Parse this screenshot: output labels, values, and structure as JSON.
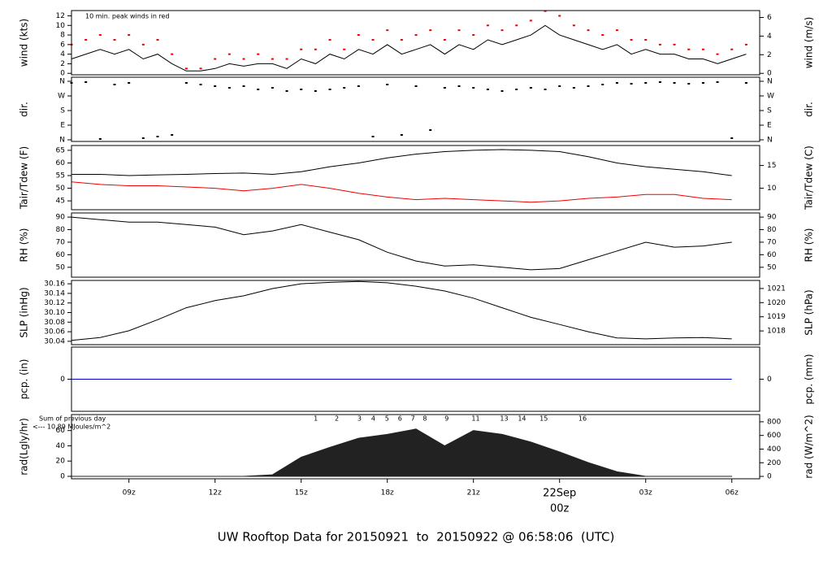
{
  "chart_data": [
    {
      "type": "line",
      "ylabel": "wind (kts)",
      "y2label": "wind (m/s)",
      "annotation": "10 min. peak winds in red",
      "annotation_color": "#ee0000",
      "xlim": [
        7,
        30.97
      ],
      "x": [
        7,
        7.5,
        8,
        8.5,
        9,
        9.5,
        10,
        10.5,
        11,
        11.5,
        12,
        12.5,
        13,
        13.5,
        14,
        14.5,
        15,
        15.5,
        16,
        16.5,
        17,
        17.5,
        18,
        18.5,
        19,
        19.5,
        20,
        20.5,
        21,
        21.5,
        22,
        22.5,
        23,
        23.5,
        24,
        24.5,
        25,
        25.5,
        26,
        26.5,
        27,
        27.5,
        28,
        28.5,
        29,
        29.5,
        30,
        30.5
      ],
      "series": [
        {
          "color": "#000000",
          "style": "line",
          "values": [
            3,
            4,
            5,
            4,
            5,
            3,
            4,
            2,
            0.5,
            0.5,
            1,
            2,
            1.5,
            2,
            2,
            1,
            3,
            2,
            4,
            3,
            5,
            4,
            6,
            4,
            5,
            6,
            4,
            6,
            5,
            7,
            6,
            7,
            8,
            10,
            8,
            7,
            6,
            5,
            6,
            4,
            5,
            4,
            4,
            3,
            3,
            2,
            3,
            4
          ]
        },
        {
          "color": "#ee0000",
          "style": "points",
          "values": [
            6,
            7,
            8,
            7,
            8,
            6,
            7,
            4,
            1,
            1,
            3,
            4,
            3,
            4,
            3,
            3,
            5,
            5,
            7,
            5,
            8,
            7,
            9,
            7,
            8,
            9,
            7,
            9,
            8,
            10,
            9,
            10,
            11,
            13,
            12,
            10,
            9,
            8,
            9,
            7,
            7,
            6,
            6,
            5,
            5,
            4,
            5,
            6
          ]
        }
      ],
      "ylim": [
        -0.3,
        13.1
      ],
      "yticks": [
        0,
        2,
        4,
        6,
        8,
        10,
        12
      ],
      "y2lim": [
        -0.154,
        6.74
      ],
      "y2ticks": [
        0,
        2,
        4,
        6
      ]
    },
    {
      "type": "scatter",
      "ylabel": "dir.",
      "y2label": "dir.",
      "xlim": [
        7,
        30.97
      ],
      "x": [
        7,
        7.5,
        8,
        8.5,
        9,
        9.5,
        10,
        10.5,
        11,
        11.5,
        12,
        12.5,
        13,
        13.5,
        14,
        14.5,
        15,
        15.5,
        16,
        16.5,
        17,
        17.5,
        18,
        18.5,
        19,
        19.5,
        20,
        20.5,
        21,
        21.5,
        22,
        22.5,
        23,
        23.5,
        24,
        24.5,
        25,
        25.5,
        26,
        26.5,
        27,
        27.5,
        28,
        28.5,
        29,
        29.5,
        30,
        30.5
      ],
      "series": [
        {
          "color": "#000000",
          "style": "points",
          "values": [
            350,
            355,
            5,
            340,
            350,
            10,
            20,
            30,
            350,
            340,
            330,
            320,
            330,
            310,
            320,
            300,
            310,
            300,
            310,
            320,
            330,
            20,
            340,
            30,
            330,
            60,
            320,
            330,
            320,
            310,
            300,
            310,
            320,
            310,
            330,
            320,
            330,
            340,
            350,
            345,
            350,
            355,
            350,
            345,
            350,
            355,
            10,
            350
          ]
        }
      ],
      "ylim": [
        -10,
        385
      ],
      "yticks": [
        {
          "value": 360,
          "label": "N"
        },
        {
          "value": 270,
          "label": "W"
        },
        {
          "value": 180,
          "label": "S"
        },
        {
          "value": 90,
          "label": "E"
        },
        {
          "value": 0,
          "label": "N"
        }
      ],
      "y2lim": [
        -10,
        385
      ],
      "y2ticks": [
        {
          "value": 360,
          "label": "N"
        },
        {
          "value": 270,
          "label": "W"
        },
        {
          "value": 180,
          "label": "S"
        },
        {
          "value": 90,
          "label": "E"
        },
        {
          "value": 0,
          "label": "N"
        }
      ]
    },
    {
      "type": "line",
      "ylabel": "Tair/Tdew (F)",
      "y2label": "Tair/Tdew (C)",
      "xlim": [
        7,
        30.97
      ],
      "x": [
        7,
        8,
        9,
        10,
        11,
        12,
        13,
        14,
        15,
        16,
        17,
        18,
        19,
        20,
        21,
        22,
        23,
        24,
        25,
        26,
        27,
        28,
        29,
        30
      ],
      "series": [
        {
          "color": "#000000",
          "style": "line",
          "values": [
            55.5,
            55.5,
            55,
            55.3,
            55.5,
            55.8,
            56,
            55.5,
            56.5,
            58.5,
            60,
            62,
            63.5,
            64.5,
            65,
            65.3,
            65,
            64.5,
            62.5,
            60,
            58.5,
            57.5,
            56.5,
            55
          ]
        },
        {
          "color": "#ee0000",
          "style": "line",
          "values": [
            52.5,
            51.5,
            51,
            51,
            50.5,
            50,
            49,
            50,
            51.5,
            50,
            48,
            46.5,
            45.5,
            46,
            45.5,
            45,
            44.5,
            45,
            46,
            46.5,
            47.5,
            47.5,
            46,
            45.5
          ]
        }
      ],
      "ylim": [
        41.5,
        66.9
      ],
      "yticks": [
        45,
        50,
        55,
        60,
        65
      ],
      "y2lim": [
        5.28,
        19.39
      ],
      "y2ticks": [
        10,
        15
      ]
    },
    {
      "type": "line",
      "ylabel": "RH (%)",
      "y2label": "RH (%)",
      "xlim": [
        7,
        30.97
      ],
      "x": [
        7,
        8,
        9,
        10,
        11,
        12,
        13,
        14,
        15,
        16,
        17,
        18,
        19,
        20,
        21,
        22,
        23,
        24,
        25,
        26,
        27,
        28,
        29,
        30
      ],
      "series": [
        {
          "color": "#000000",
          "style": "line",
          "values": [
            90,
            88,
            86,
            86,
            84,
            82,
            76,
            79,
            84,
            78,
            72,
            62,
            55,
            51,
            52,
            50,
            48,
            49,
            56,
            63,
            70,
            66,
            67,
            70
          ]
        }
      ],
      "ylim": [
        42.1,
        93.3
      ],
      "yticks": [
        50,
        60,
        70,
        80,
        90
      ],
      "y2lim": [
        42.1,
        93.3
      ],
      "y2ticks": [
        50,
        60,
        70,
        80,
        90
      ]
    },
    {
      "type": "line",
      "ylabel": "SLP (inHg)",
      "y2label": "SLP (hPa)",
      "xlim": [
        7,
        30.97
      ],
      "x": [
        7,
        8,
        9,
        10,
        11,
        12,
        13,
        14,
        15,
        16,
        17,
        18,
        19,
        20,
        21,
        22,
        23,
        24,
        25,
        26,
        27,
        28,
        29,
        30
      ],
      "series": [
        {
          "color": "#000000",
          "style": "line",
          "values": [
            30.042,
            30.048,
            30.062,
            30.085,
            30.11,
            30.125,
            30.135,
            30.15,
            30.16,
            30.163,
            30.165,
            30.162,
            30.155,
            30.145,
            30.13,
            30.11,
            30.09,
            30.075,
            30.06,
            30.047,
            30.045,
            30.047,
            30.048,
            30.045
          ]
        }
      ],
      "ylim": [
        30.033,
        30.167
      ],
      "yticks": [
        30.04,
        30.06,
        30.08,
        {
          "value": 30.1,
          "label": "30.10"
        },
        30.12,
        30.14,
        30.16
      ],
      "y2lim": [
        1017.03,
        1021.57
      ],
      "y2ticks": [
        1018,
        1019,
        1020,
        1021
      ]
    },
    {
      "type": "line",
      "ylabel": "pcp. (in)",
      "y2label": "pcp. (mm)",
      "xlim": [
        7,
        30.97
      ],
      "x": [
        7,
        8,
        9,
        10,
        11,
        12,
        13,
        14,
        15,
        16,
        17,
        18,
        19,
        20,
        21,
        22,
        23,
        24,
        25,
        26,
        27,
        28,
        29,
        30
      ],
      "series": [
        {
          "color": "#0000cc",
          "style": "line",
          "values": [
            0,
            0,
            0,
            0,
            0,
            0,
            0,
            0,
            0,
            0,
            0,
            0,
            0,
            0,
            0,
            0,
            0,
            0,
            0,
            0,
            0,
            0,
            0,
            0
          ]
        }
      ],
      "ylim": [
        -0.1,
        0.1
      ],
      "yticks": [
        0
      ],
      "y2lim": [
        -2.54,
        2.54
      ],
      "y2ticks": [
        0
      ]
    },
    {
      "type": "area",
      "ylabel": "rad(Lgly/hr)",
      "y2label": "rad (W/m^2)",
      "note": "Sum of previous day",
      "note2": "<--- 10.89 MJoules/m^2",
      "note_color": "#9900cc",
      "hour_markers": {
        "x": [
          15.51,
          16.24,
          17.03,
          17.51,
          17.99,
          18.44,
          18.89,
          19.31,
          20.07,
          21.08,
          22.07,
          22.69,
          23.45,
          24.8
        ],
        "labels": [
          "1",
          "2",
          "3",
          "4",
          "5",
          "6",
          "7",
          "8",
          "9",
          "11",
          "13",
          "14",
          "15",
          "16"
        ]
      },
      "xlim": [
        7,
        30.97
      ],
      "x": [
        7,
        8,
        9,
        10,
        11,
        12,
        13,
        14,
        15,
        16,
        17,
        18,
        19,
        20,
        21,
        22,
        23,
        24,
        25,
        26,
        27,
        28,
        29,
        30
      ],
      "series": [
        {
          "color": "#222222",
          "style": "area",
          "values": [
            0,
            0,
            0,
            0,
            0,
            0,
            0,
            2,
            25,
            38,
            50,
            55,
            62,
            40,
            60,
            55,
            45,
            32,
            18,
            6,
            0,
            0,
            0,
            0
          ]
        }
      ],
      "ylim": [
        -3.2,
        81
      ],
      "yticks": [
        0,
        20,
        40,
        60
      ],
      "y2lim": [
        -35,
        906
      ],
      "y2ticks": [
        0,
        200,
        400,
        600,
        800
      ],
      "xticks": [
        {
          "value": 9,
          "label": "09z"
        },
        {
          "value": 12,
          "label": "12z"
        },
        {
          "value": 15,
          "label": "15z"
        },
        {
          "value": 18,
          "label": "18z"
        },
        {
          "value": 21,
          "label": "21z"
        },
        {
          "value": 24,
          "label": "00z"
        },
        {
          "value": 27,
          "label": "03z"
        },
        {
          "value": 30,
          "label": "06z"
        }
      ],
      "date_label": {
        "text": "22Sep",
        "x": 24
      },
      "date_color": "#ee0000"
    }
  ],
  "footer": {
    "title": "UW Rooftop Data for 20150921  to  20150922 @ 06:58:06  (UTC)",
    "color": "#0000cc"
  }
}
